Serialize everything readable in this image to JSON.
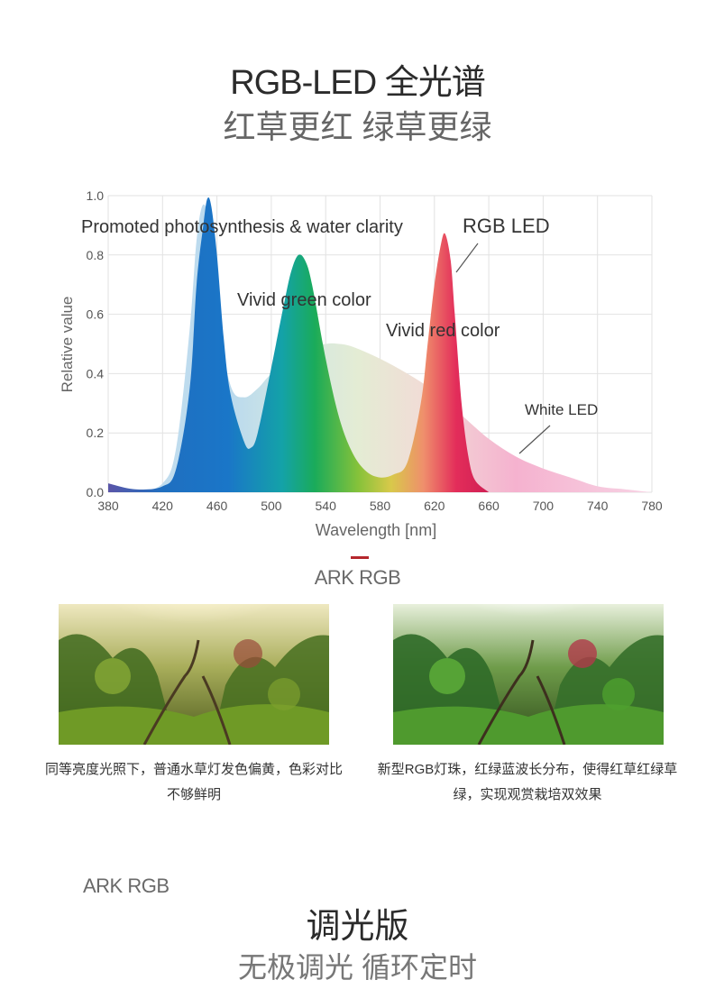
{
  "header": {
    "title": "RGB-LED 全光谱",
    "subtitle": "红草更红 绿草更绿"
  },
  "chart_data": {
    "type": "area",
    "xlabel": "Wavelength [nm]",
    "ylabel": "Relative value",
    "xlim": [
      380,
      780
    ],
    "ylim": [
      0,
      1.0
    ],
    "xticks": [
      "380",
      "420",
      "460",
      "500",
      "540",
      "580",
      "620",
      "660",
      "700",
      "740",
      "780"
    ],
    "yticks": [
      "0.0",
      "0.2",
      "0.4",
      "0.6",
      "0.8",
      "1.0"
    ],
    "grid": true,
    "annotations": {
      "blue": "Promoted photosynthesis & water clarity",
      "green": "Vivid green color",
      "red": "Vivid red color",
      "rgb": "RGB LED",
      "white": "White LED"
    },
    "series": [
      {
        "name": "RGB LED",
        "x": [
          380,
          400,
          420,
          430,
          440,
          445,
          450,
          453,
          456,
          460,
          465,
          470,
          480,
          485,
          490,
          500,
          510,
          515,
          520,
          525,
          530,
          540,
          550,
          560,
          570,
          580,
          590,
          600,
          610,
          615,
          620,
          625,
          628,
          632,
          635,
          640,
          645,
          650,
          660
        ],
        "values": [
          0.03,
          0.01,
          0.02,
          0.08,
          0.35,
          0.7,
          0.9,
          0.99,
          0.96,
          0.8,
          0.52,
          0.33,
          0.17,
          0.15,
          0.2,
          0.42,
          0.65,
          0.75,
          0.8,
          0.78,
          0.7,
          0.45,
          0.25,
          0.13,
          0.07,
          0.05,
          0.06,
          0.1,
          0.3,
          0.5,
          0.7,
          0.84,
          0.87,
          0.78,
          0.6,
          0.3,
          0.12,
          0.04,
          0.0
        ],
        "color": "#2b7bc8"
      },
      {
        "name": "White LED",
        "x": [
          380,
          400,
          420,
          430,
          440,
          445,
          450,
          455,
          460,
          470,
          480,
          490,
          500,
          520,
          540,
          550,
          560,
          580,
          600,
          620,
          640,
          660,
          680,
          700,
          720,
          740,
          760,
          780
        ],
        "values": [
          0.0,
          0.0,
          0.03,
          0.15,
          0.55,
          0.85,
          0.97,
          0.88,
          0.6,
          0.36,
          0.32,
          0.35,
          0.4,
          0.48,
          0.5,
          0.5,
          0.49,
          0.45,
          0.4,
          0.34,
          0.26,
          0.18,
          0.12,
          0.08,
          0.05,
          0.02,
          0.01,
          0.0
        ],
        "color": "#f0a0c8"
      }
    ]
  },
  "comparison": {
    "label": "ARK RGB",
    "left_caption": "同等亮度光照下，普通水草灯发色偏黄，色彩对比不够鲜明",
    "right_caption": "新型RGB灯珠，红绿蓝波长分布，使得红草红绿草绿，实现观赏栽培双效果"
  },
  "dimming": {
    "label": "ARK RGB",
    "title": "调光版",
    "subtitle": "无极调光 循环定时"
  }
}
